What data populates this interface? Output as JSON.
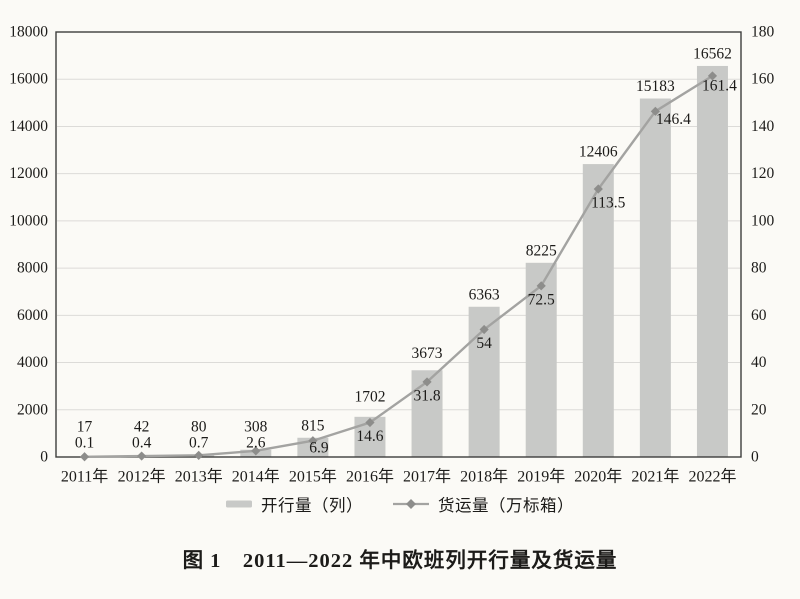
{
  "page": {
    "background": "#fbfaf6"
  },
  "figure_caption": "图 1　2011—2022 年中欧班列开行量及货运量",
  "chart_data": {
    "type": "bar",
    "subtype": "bar+line combo",
    "title": "图 1　2011—2022 年中欧班列开行量及货运量",
    "categories": [
      "2011年",
      "2012年",
      "2013年",
      "2014年",
      "2015年",
      "2016年",
      "2017年",
      "2018年",
      "2019年",
      "2020年",
      "2021年",
      "2022年"
    ],
    "series": [
      {
        "name": "开行量（列）",
        "type": "bar",
        "axis": "left",
        "values": [
          17,
          42,
          80,
          308,
          815,
          1702,
          3673,
          6363,
          8225,
          12406,
          15183,
          16562
        ],
        "color": "#c8c9c7"
      },
      {
        "name": "货运量（万标箱）",
        "type": "line",
        "axis": "right",
        "marker": "diamond",
        "values": [
          0.1,
          0.4,
          0.7,
          2.6,
          6.9,
          14.6,
          31.8,
          54,
          72.5,
          113.5,
          146.4,
          161.4
        ],
        "color": "#a3a3a1",
        "marker_color": "#8d8d8b"
      }
    ],
    "left_axis": {
      "min": 0,
      "max": 18000,
      "step": 2000
    },
    "right_axis": {
      "min": 0,
      "max": 180,
      "step": 20
    },
    "grid": "horizontal",
    "grid_color": "#dcdbd8",
    "border_color": "#3e3e3c",
    "label_color": "#1c1b19",
    "legend_position": "bottom"
  }
}
